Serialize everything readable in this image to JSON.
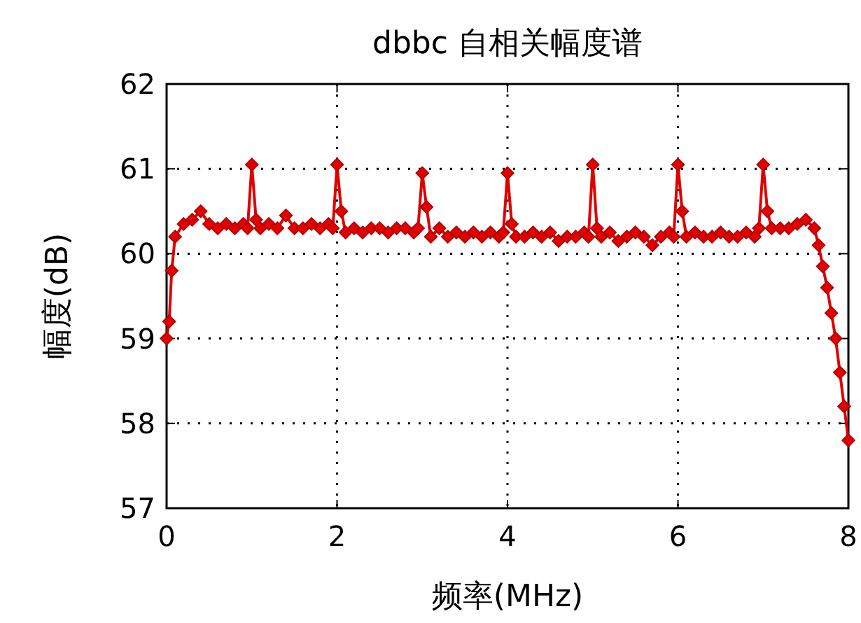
{
  "chart_data": {
    "type": "line",
    "title": "dbbc 自相关幅度谱",
    "xlabel": "频率(MHz)",
    "ylabel": "幅度(dB)",
    "xlim": [
      0,
      8
    ],
    "ylim": [
      57,
      62
    ],
    "xticks": [
      0,
      2,
      4,
      6,
      8
    ],
    "yticks": [
      57,
      58,
      59,
      60,
      61,
      62
    ],
    "grid": true,
    "marker": "diamond",
    "line_style": "solid",
    "series": [
      {
        "color": "#e00000",
        "x": [
          0,
          0.03,
          0.06,
          0.1,
          0.2,
          0.3,
          0.4,
          0.5,
          0.6,
          0.7,
          0.8,
          0.9,
          0.95,
          1,
          1.05,
          1.1,
          1.2,
          1.3,
          1.4,
          1.5,
          1.6,
          1.7,
          1.8,
          1.9,
          1.95,
          2,
          2.05,
          2.1,
          2.2,
          2.3,
          2.4,
          2.5,
          2.6,
          2.7,
          2.8,
          2.9,
          2.95,
          3,
          3.05,
          3.1,
          3.2,
          3.3,
          3.4,
          3.5,
          3.6,
          3.7,
          3.8,
          3.9,
          3.95,
          4,
          4.05,
          4.1,
          4.2,
          4.3,
          4.4,
          4.5,
          4.6,
          4.7,
          4.8,
          4.9,
          4.95,
          5,
          5.05,
          5.1,
          5.2,
          5.3,
          5.4,
          5.5,
          5.6,
          5.7,
          5.8,
          5.9,
          5.95,
          6,
          6.05,
          6.1,
          6.2,
          6.3,
          6.4,
          6.5,
          6.6,
          6.7,
          6.8,
          6.9,
          6.95,
          7,
          7.05,
          7.1,
          7.2,
          7.3,
          7.4,
          7.5,
          7.6,
          7.65,
          7.7,
          7.75,
          7.8,
          7.85,
          7.9,
          7.95,
          8
        ],
        "values": [
          59.0,
          59.2,
          59.8,
          60.2,
          60.35,
          60.4,
          60.5,
          60.35,
          60.3,
          60.35,
          60.3,
          60.35,
          60.3,
          61.05,
          60.4,
          60.3,
          60.35,
          60.3,
          60.45,
          60.3,
          60.3,
          60.35,
          60.3,
          60.35,
          60.3,
          61.05,
          60.5,
          60.25,
          60.3,
          60.25,
          60.3,
          60.3,
          60.25,
          60.3,
          60.3,
          60.25,
          60.3,
          60.95,
          60.55,
          60.2,
          60.3,
          60.2,
          60.25,
          60.2,
          60.25,
          60.2,
          60.25,
          60.2,
          60.25,
          60.95,
          60.35,
          60.2,
          60.2,
          60.25,
          60.2,
          60.25,
          60.15,
          60.2,
          60.2,
          60.25,
          60.2,
          61.05,
          60.3,
          60.2,
          60.25,
          60.15,
          60.2,
          60.25,
          60.2,
          60.1,
          60.2,
          60.25,
          60.2,
          61.05,
          60.5,
          60.2,
          60.25,
          60.2,
          60.2,
          60.25,
          60.2,
          60.2,
          60.25,
          60.2,
          60.3,
          61.05,
          60.5,
          60.3,
          60.3,
          60.3,
          60.35,
          60.4,
          60.3,
          60.1,
          59.85,
          59.6,
          59.3,
          59.0,
          58.6,
          58.2,
          57.8
        ]
      }
    ]
  }
}
